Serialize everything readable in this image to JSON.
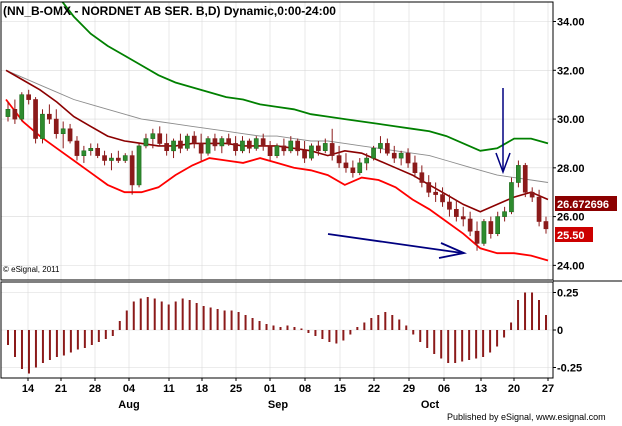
{
  "title": "(NN_B-OMX - NORDNET AB SER. B,D) Dynamic,0:00-24:00",
  "watermark": "© eSignal, 2011",
  "footer": "Published by eSignal, www.esignal.com",
  "colors": {
    "background": "#ffffff",
    "grid": "#d9d9d9",
    "candle": "#8b1a1a",
    "upper_band": "#008000",
    "lower_band": "#ff0000",
    "mid_line": "#8c8c8c",
    "ema": "#8b0000",
    "arrow": "#000080",
    "histogram": "#8b1a1a",
    "label_last": "#cc0000",
    "label_indicator": "#8b0000"
  },
  "chart_data": {
    "type": "candlestick",
    "price_axis": {
      "ticks": [
        "34.00",
        "32.00",
        "30.00",
        "28.00",
        "26.00",
        "24.00"
      ],
      "ylim": [
        23.4,
        34.8
      ]
    },
    "x_tick_labels": [
      "14",
      "21",
      "28",
      "04",
      "11",
      "18",
      "25",
      "01",
      "08",
      "15",
      "22",
      "29",
      "06",
      "13",
      "20",
      "27"
    ],
    "month_labels": [
      "Aug",
      "Sep",
      "Oct"
    ],
    "price_labels": {
      "indicator": "26.672696",
      "last": "25.50"
    },
    "candles": [
      [
        30.1,
        30.7,
        29.9,
        30.4
      ],
      [
        30.4,
        30.8,
        29.8,
        30.0
      ],
      [
        30.0,
        31.1,
        29.9,
        31.0
      ],
      [
        31.0,
        31.2,
        30.6,
        30.8
      ],
      [
        30.8,
        30.9,
        29.0,
        29.2
      ],
      [
        29.2,
        30.4,
        29.0,
        30.2
      ],
      [
        30.2,
        30.6,
        29.8,
        30.0
      ],
      [
        30.0,
        30.4,
        29.2,
        29.4
      ],
      [
        29.4,
        29.9,
        28.8,
        29.6
      ],
      [
        29.6,
        29.8,
        29.0,
        29.1
      ],
      [
        29.1,
        29.3,
        28.3,
        28.5
      ],
      [
        28.5,
        28.9,
        28.2,
        28.7
      ],
      [
        28.7,
        29.0,
        28.5,
        28.8
      ],
      [
        28.8,
        29.0,
        28.4,
        28.5
      ],
      [
        28.5,
        28.7,
        28.1,
        28.3
      ],
      [
        28.3,
        28.6,
        27.9,
        28.4
      ],
      [
        28.4,
        28.7,
        28.2,
        28.3
      ],
      [
        28.3,
        28.6,
        28.2,
        28.5
      ],
      [
        28.5,
        28.7,
        26.9,
        27.3
      ],
      [
        27.3,
        29.0,
        27.2,
        28.9
      ],
      [
        28.9,
        29.4,
        28.8,
        29.2
      ],
      [
        29.2,
        29.6,
        28.8,
        29.4
      ],
      [
        29.4,
        29.7,
        28.9,
        29.0
      ],
      [
        29.0,
        29.4,
        28.5,
        28.7
      ],
      [
        28.7,
        29.2,
        28.4,
        29.1
      ],
      [
        29.1,
        29.4,
        28.6,
        28.8
      ],
      [
        28.8,
        29.4,
        28.7,
        29.3
      ],
      [
        29.3,
        29.5,
        28.8,
        29.0
      ],
      [
        29.0,
        29.4,
        28.3,
        28.6
      ],
      [
        28.6,
        29.3,
        28.5,
        29.2
      ],
      [
        29.2,
        29.4,
        28.7,
        28.9
      ],
      [
        28.9,
        29.3,
        28.6,
        29.2
      ],
      [
        29.2,
        29.4,
        28.9,
        29.0
      ],
      [
        29.0,
        29.3,
        28.5,
        28.7
      ],
      [
        28.7,
        29.3,
        28.6,
        29.1
      ],
      [
        29.1,
        29.2,
        28.6,
        28.8
      ],
      [
        28.8,
        29.3,
        28.7,
        29.2
      ],
      [
        29.2,
        29.4,
        28.7,
        28.9
      ],
      [
        28.9,
        29.1,
        28.3,
        28.5
      ],
      [
        28.5,
        29.0,
        28.4,
        28.9
      ],
      [
        28.9,
        29.2,
        28.5,
        28.7
      ],
      [
        28.7,
        29.3,
        28.6,
        29.1
      ],
      [
        29.1,
        29.2,
        28.5,
        28.7
      ],
      [
        28.7,
        29.1,
        28.2,
        28.4
      ],
      [
        28.4,
        29.0,
        28.3,
        28.9
      ],
      [
        28.9,
        29.1,
        28.5,
        28.7
      ],
      [
        28.7,
        29.2,
        28.6,
        29.0
      ],
      [
        29.0,
        29.6,
        28.3,
        28.5
      ],
      [
        28.5,
        28.9,
        28.0,
        28.2
      ],
      [
        28.2,
        28.6,
        27.8,
        28.0
      ],
      [
        28.0,
        28.3,
        27.6,
        27.8
      ],
      [
        27.8,
        28.4,
        27.7,
        28.2
      ],
      [
        28.2,
        28.6,
        27.9,
        28.4
      ],
      [
        28.4,
        28.9,
        28.3,
        28.8
      ],
      [
        28.8,
        29.3,
        28.6,
        29.0
      ],
      [
        29.0,
        29.2,
        28.5,
        28.6
      ],
      [
        28.6,
        28.9,
        28.2,
        28.4
      ],
      [
        28.4,
        28.7,
        28.1,
        28.6
      ],
      [
        28.6,
        28.8,
        28.0,
        28.2
      ],
      [
        28.2,
        28.5,
        27.6,
        27.8
      ],
      [
        27.8,
        28.1,
        27.2,
        27.4
      ],
      [
        27.4,
        27.7,
        26.8,
        27.0
      ],
      [
        27.0,
        27.4,
        26.6,
        26.9
      ],
      [
        26.9,
        27.2,
        26.4,
        26.6
      ],
      [
        26.6,
        26.9,
        26.0,
        26.3
      ],
      [
        26.3,
        26.7,
        25.8,
        26.0
      ],
      [
        26.0,
        26.4,
        25.6,
        25.9
      ],
      [
        25.9,
        26.2,
        25.2,
        25.4
      ],
      [
        25.4,
        25.8,
        24.6,
        24.9
      ],
      [
        24.9,
        25.9,
        24.8,
        25.8
      ],
      [
        25.8,
        26.0,
        25.1,
        25.3
      ],
      [
        25.3,
        26.2,
        25.2,
        26.0
      ],
      [
        26.0,
        26.4,
        25.8,
        26.2
      ],
      [
        26.2,
        27.6,
        26.1,
        27.4
      ],
      [
        27.4,
        28.3,
        27.2,
        28.1
      ],
      [
        28.1,
        28.2,
        26.8,
        27.0
      ],
      [
        27.0,
        27.2,
        26.6,
        26.8
      ],
      [
        26.8,
        27.1,
        25.6,
        25.8
      ],
      [
        25.8,
        26.0,
        25.3,
        25.5
      ]
    ],
    "upper_band": [
      36.5,
      36.2,
      35.8,
      35.1,
      34.2,
      33.5,
      33.0,
      32.6,
      32.2,
      31.8,
      31.5,
      31.3,
      31.1,
      30.9,
      30.8,
      30.6,
      30.5,
      30.4,
      30.2,
      30.1,
      30.0,
      29.9,
      29.8,
      29.7,
      29.6,
      29.5,
      29.3,
      29.0,
      28.7,
      28.8,
      29.2,
      29.2,
      29.0
    ],
    "mid_line": [
      32.0,
      31.7,
      31.4,
      31.1,
      30.8,
      30.6,
      30.4,
      30.2,
      30.0,
      29.9,
      29.8,
      29.7,
      29.6,
      29.5,
      29.4,
      29.3,
      29.3,
      29.2,
      29.1,
      29.1,
      29.0,
      28.9,
      28.8,
      28.7,
      28.6,
      28.5,
      28.3,
      28.1,
      27.9,
      27.7,
      27.6,
      27.5,
      27.4
    ],
    "ema_line": [
      32.0,
      31.6,
      31.2,
      30.7,
      30.1,
      29.7,
      29.3,
      29.1,
      29.0,
      28.9,
      28.9,
      29.0,
      29.0,
      29.0,
      28.9,
      28.9,
      28.9,
      28.8,
      28.7,
      28.5,
      28.7,
      28.6,
      28.3,
      28.0,
      27.7,
      27.3,
      26.9,
      26.5,
      26.2,
      26.5,
      26.8,
      27.0,
      26.7
    ],
    "lower_band": [
      30.8,
      29.9,
      29.3,
      28.8,
      28.3,
      27.8,
      27.3,
      27.0,
      27.0,
      27.2,
      27.7,
      28.1,
      28.4,
      28.3,
      28.2,
      28.4,
      28.2,
      28.0,
      27.9,
      27.7,
      27.3,
      27.6,
      27.5,
      27.2,
      26.7,
      26.3,
      25.8,
      25.3,
      24.7,
      24.5,
      24.5,
      24.4,
      24.2
    ],
    "indicator_axis": {
      "ticks": [
        "0.25",
        "0",
        "-0.25"
      ],
      "ylim": [
        -0.32,
        0.32
      ]
    },
    "histogram": [
      -0.1,
      -0.18,
      -0.26,
      -0.29,
      -0.25,
      -0.22,
      -0.2,
      -0.18,
      -0.17,
      -0.15,
      -0.13,
      -0.12,
      -0.1,
      -0.08,
      -0.06,
      -0.04,
      0.06,
      0.13,
      0.19,
      0.21,
      0.22,
      0.21,
      0.19,
      0.17,
      0.19,
      0.21,
      0.2,
      0.18,
      0.16,
      0.15,
      0.14,
      0.13,
      0.13,
      0.12,
      0.1,
      0.08,
      0.06,
      0.04,
      0.03,
      0.02,
      0.03,
      0.02,
      0.01,
      -0.02,
      -0.04,
      -0.06,
      -0.08,
      -0.09,
      -0.07,
      -0.03,
      0.02,
      0.05,
      0.08,
      0.1,
      0.12,
      0.1,
      0.07,
      0.03,
      -0.03,
      -0.08,
      -0.12,
      -0.16,
      -0.19,
      -0.22,
      -0.22,
      -0.21,
      -0.2,
      -0.19,
      -0.18,
      -0.15,
      -0.11,
      -0.05,
      0.05,
      0.2,
      0.25,
      0.25,
      0.2,
      0.1
    ]
  }
}
